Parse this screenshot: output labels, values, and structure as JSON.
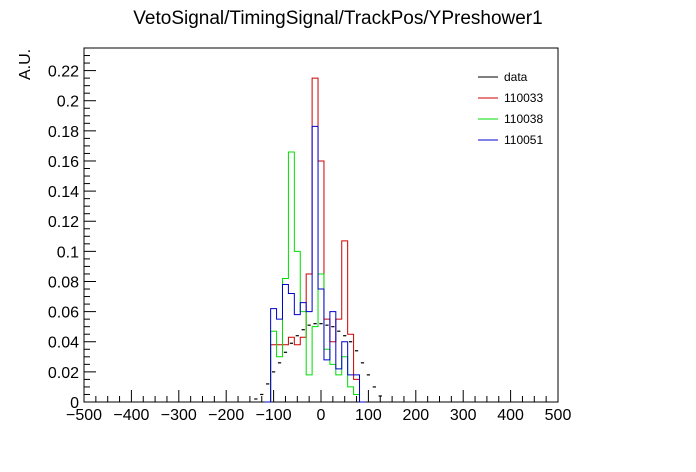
{
  "chart_data": {
    "type": "histogram",
    "title": "VetoSignal/TimingSignal/TrackPos/YPreshower1",
    "xlabel": "",
    "ylabel": "A.U.",
    "xlim": [
      -500,
      500
    ],
    "ylim": [
      0,
      0.235
    ],
    "xticks": [
      -500,
      -400,
      -300,
      -200,
      -100,
      0,
      100,
      200,
      300,
      400,
      500
    ],
    "xtick_labels": [
      "−500",
      "−400",
      "−300",
      "−200",
      "−100",
      "0",
      "100",
      "200",
      "300",
      "400",
      "500"
    ],
    "yticks": [
      0,
      0.02,
      0.04,
      0.06,
      0.08,
      0.1,
      0.12,
      0.14,
      0.16,
      0.18,
      0.2,
      0.22
    ],
    "ytick_labels": [
      "0",
      "0.02",
      "0.04",
      "0.06",
      "0.08",
      "0.1",
      "0.12",
      "0.14",
      "0.16",
      "0.18",
      "0.2",
      "0.22"
    ],
    "bin_width": 12.5,
    "legend_position": "top-right",
    "series": [
      {
        "name": "data",
        "color": "#000000",
        "style": "markers",
        "x": [
          -137.5,
          -125,
          -112.5,
          -100,
          -87.5,
          -75,
          -62.5,
          -50,
          -37.5,
          -25,
          -12.5,
          0,
          12.5,
          25,
          37.5,
          50,
          62.5,
          75,
          87.5,
          100,
          112.5,
          125
        ],
        "y": [
          0.002,
          0.005,
          0.012,
          0.02,
          0.026,
          0.033,
          0.039,
          0.044,
          0.048,
          0.051,
          0.052,
          0.052,
          0.051,
          0.05,
          0.047,
          0.044,
          0.04,
          0.034,
          0.026,
          0.018,
          0.01,
          0.004
        ]
      },
      {
        "name": "110033",
        "color": "#cc0000",
        "style": "step",
        "x": [
          -100,
          -87.5,
          -75,
          -62.5,
          -50,
          -37.5,
          -25,
          -12.5,
          0,
          12.5,
          25,
          37.5,
          50,
          62.5,
          75
        ],
        "y": [
          0.038,
          0.038,
          0.038,
          0.043,
          0.038,
          0.043,
          0.085,
          0.215,
          0.16,
          0.055,
          0.04,
          0.055,
          0.107,
          0.045,
          0.015
        ]
      },
      {
        "name": "110038",
        "color": "#00dd00",
        "style": "step",
        "x": [
          -112.5,
          -100,
          -87.5,
          -75,
          -62.5,
          -50,
          -37.5,
          -25,
          -12.5,
          0,
          12.5,
          25,
          37.5,
          50,
          62.5,
          75,
          87.5
        ],
        "y": [
          0.0,
          0.047,
          0.03,
          0.082,
          0.166,
          0.1,
          0.06,
          0.018,
          0.05,
          0.085,
          0.035,
          0.025,
          0.018,
          0.03,
          0.01,
          0.005,
          0.0
        ]
      },
      {
        "name": "110051",
        "color": "#0000cc",
        "style": "step",
        "x": [
          -112.5,
          -100,
          -87.5,
          -75,
          -62.5,
          -50,
          -37.5,
          -25,
          -12.5,
          0,
          12.5,
          25,
          37.5,
          50,
          62.5,
          75,
          87.5
        ],
        "y": [
          0.0,
          0.062,
          0.055,
          0.078,
          0.072,
          0.058,
          0.066,
          0.06,
          0.183,
          0.075,
          0.028,
          0.06,
          0.022,
          0.04,
          0.018,
          0.018,
          0.0
        ]
      }
    ]
  }
}
